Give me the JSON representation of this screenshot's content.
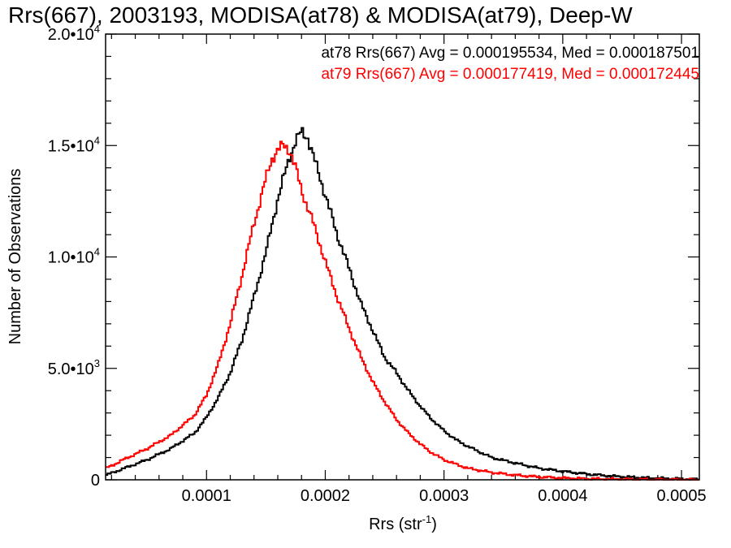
{
  "chart_data": {
    "type": "line",
    "step": true,
    "title": "Rrs(667), 2003193, MODISA(at78) & MODISA(at79), Deep-W",
    "xlabel": "Rrs (str",
    "xlabel_sup": "-1",
    "xlabel_close": ")",
    "ylabel": "Number of Observations",
    "xlim": [
      1.5e-05,
      0.000515
    ],
    "ylim": [
      0,
      20000
    ],
    "grid": false,
    "x_ticks": [
      {
        "value": 0.0001,
        "label": "0.0001"
      },
      {
        "value": 0.0002,
        "label": "0.0002"
      },
      {
        "value": 0.0003,
        "label": "0.0003"
      },
      {
        "value": 0.0004,
        "label": "0.0004"
      },
      {
        "value": 0.0005,
        "label": "0.0005"
      }
    ],
    "y_ticks": [
      {
        "value": 0,
        "mant": "0",
        "exp": ""
      },
      {
        "value": 5000,
        "mant": "5.0•10",
        "exp": "3"
      },
      {
        "value": 10000,
        "mant": "1.0•10",
        "exp": "4"
      },
      {
        "value": 15000,
        "mant": "1.5•10",
        "exp": "4"
      },
      {
        "value": 20000,
        "mant": "2.0•10",
        "exp": "4"
      }
    ],
    "annotations": [
      {
        "text": "at78 Rrs(667) Avg = 0.000195534, Med = 0.000187501",
        "color": "#000000"
      },
      {
        "text": "at79 Rrs(667) Avg = 0.000177419, Med = 0.000172445",
        "color": "#ff0000"
      }
    ],
    "series": [
      {
        "color": "#000000",
        "x": [
          1.5e-05,
          3e-05,
          5e-05,
          7e-05,
          9e-05,
          0.0001,
          0.00011,
          0.00012,
          0.00013,
          0.00014,
          0.00015,
          0.00016,
          0.00017,
          0.000175,
          0.00018,
          0.000185,
          0.00019,
          0.0002,
          0.00021,
          0.00022,
          0.00023,
          0.00024,
          0.00025,
          0.00026,
          0.00027,
          0.00028,
          0.00029,
          0.0003,
          0.00031,
          0.00032,
          0.00034,
          0.00036,
          0.00038,
          0.0004,
          0.00042,
          0.00044,
          0.00046,
          0.00048,
          0.0005,
          0.000515
        ],
        "y": [
          200,
          500,
          900,
          1400,
          2100,
          2800,
          3700,
          4800,
          6300,
          8200,
          10200,
          12600,
          14500,
          15200,
          15600,
          15400,
          14500,
          12800,
          11000,
          9500,
          7900,
          6700,
          5500,
          4800,
          4000,
          3300,
          2700,
          2200,
          1800,
          1500,
          1000,
          750,
          520,
          380,
          260,
          170,
          110,
          70,
          40,
          20
        ]
      },
      {
        "color": "#ff0000",
        "x": [
          1.5e-05,
          3e-05,
          5e-05,
          7e-05,
          9e-05,
          0.0001,
          0.00011,
          0.00012,
          0.00013,
          0.00014,
          0.00015,
          0.000155,
          0.00016,
          0.000165,
          0.00017,
          0.000175,
          0.00018,
          0.00019,
          0.0002,
          0.00021,
          0.00022,
          0.00023,
          0.00024,
          0.00025,
          0.00026,
          0.00027,
          0.00028,
          0.00029,
          0.0003,
          0.00031,
          0.00032,
          0.00034,
          0.00036,
          0.00038,
          0.0004,
          0.00042,
          0.00044,
          0.00046,
          0.00048,
          0.0005,
          0.000515
        ],
        "y": [
          500,
          900,
          1400,
          2000,
          2900,
          3800,
          5200,
          7000,
          9200,
          11500,
          13500,
          14400,
          14800,
          15000,
          14800,
          14000,
          13000,
          11500,
          9800,
          8200,
          6800,
          5500,
          4400,
          3500,
          2700,
          2100,
          1600,
          1200,
          900,
          700,
          520,
          330,
          210,
          130,
          80,
          50,
          30,
          20,
          10,
          5,
          0
        ]
      }
    ]
  }
}
